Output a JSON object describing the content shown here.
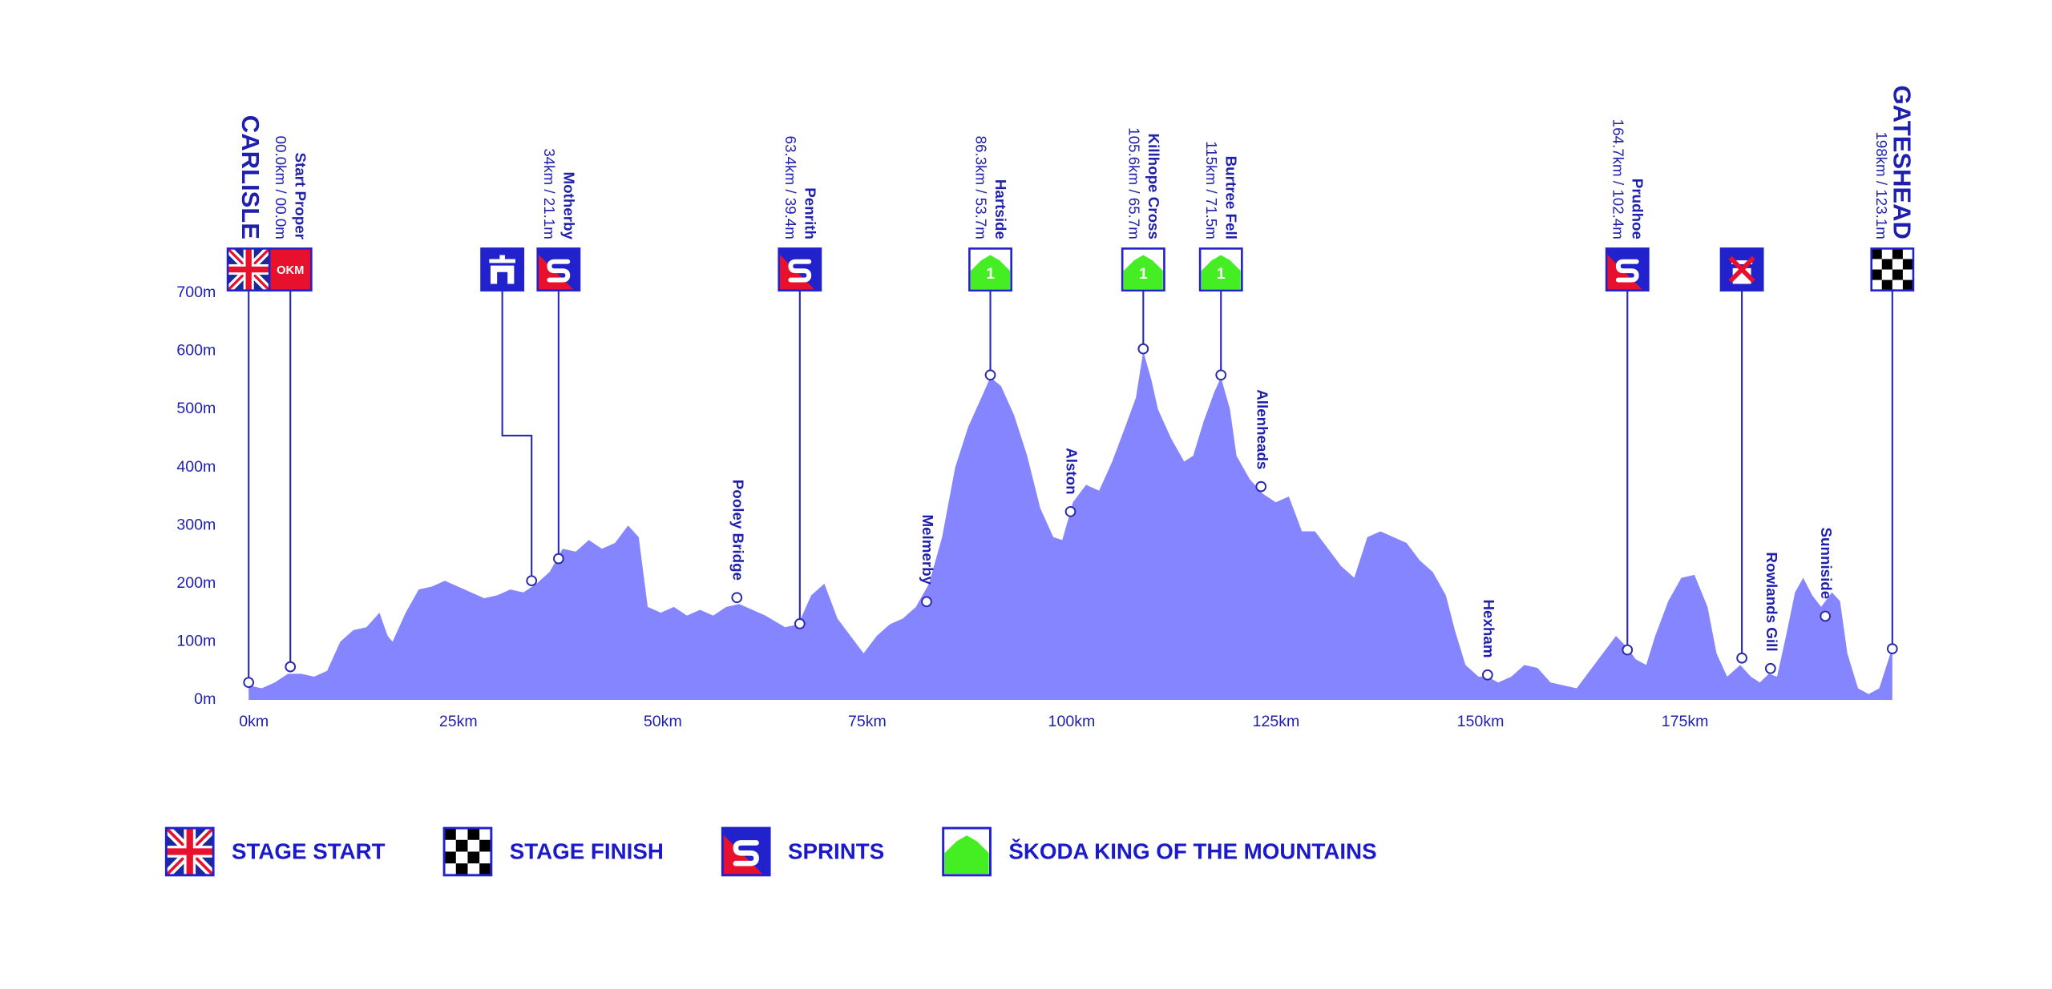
{
  "chart_data": {
    "type": "area",
    "color": "#8585ff",
    "xlim": [
      0,
      201
    ],
    "ylim": [
      0,
      700
    ],
    "xticks": [
      {
        "value": 0,
        "label": "0km"
      },
      {
        "value": 25,
        "label": "25km"
      },
      {
        "value": 50,
        "label": "50km"
      },
      {
        "value": 75,
        "label": "75km"
      },
      {
        "value": 100,
        "label": "100km"
      },
      {
        "value": 125,
        "label": "125km"
      },
      {
        "value": 150,
        "label": "150km"
      },
      {
        "value": 175,
        "label": "175km"
      }
    ],
    "yticks": [
      {
        "value": 0,
        "label": "0m"
      },
      {
        "value": 100,
        "label": "100m"
      },
      {
        "value": 200,
        "label": "200m"
      },
      {
        "value": 300,
        "label": "300m"
      },
      {
        "value": 400,
        "label": "400m"
      },
      {
        "value": 500,
        "label": "500m"
      },
      {
        "value": 600,
        "label": "600m"
      },
      {
        "value": 700,
        "label": "700m"
      }
    ],
    "x": [
      0,
      1.6,
      3.2,
      4.8,
      6.4,
      8,
      9.6,
      11.2,
      12.8,
      14.4,
      16,
      17,
      17.6,
      19.2,
      20.8,
      22.4,
      24,
      25.6,
      27.2,
      28.8,
      30.4,
      32,
      33.6,
      35.2,
      36.8,
      38.4,
      40,
      41.6,
      43.2,
      44.8,
      46.4,
      47.7,
      48.8,
      50.4,
      52,
      53.6,
      55.2,
      56.8,
      58.4,
      60,
      61.6,
      63.2,
      65.6,
      67.2,
      68.8,
      70.4,
      72,
      73.6,
      75.2,
      76.8,
      78.4,
      80,
      81.6,
      83.2,
      84.8,
      86.4,
      88,
      89.6,
      90.7,
      92,
      93.6,
      95.2,
      96.8,
      98.4,
      99.5,
      100.8,
      102.4,
      104,
      105.6,
      107.2,
      108.5,
      109.4,
      110.4,
      111.2,
      112.8,
      114.4,
      115.5,
      116.8,
      118.1,
      118.9,
      120,
      120.8,
      122.4,
      124,
      125.6,
      127.2,
      128.8,
      130.4,
      132,
      133.6,
      135.2,
      136.8,
      138.4,
      140,
      141.6,
      143.2,
      144.8,
      146.4,
      147.5,
      148.8,
      150.4,
      151.5,
      152.8,
      154.4,
      156,
      157.6,
      159.2,
      160.8,
      162.4,
      164,
      165.6,
      167.2,
      168.6,
      169.6,
      170.9,
      172,
      173.6,
      175.2,
      176.8,
      178.4,
      179.5,
      180.8,
      182.4,
      183.7,
      184.8,
      185.9,
      186.9,
      188,
      189.1,
      190.1,
      191.2,
      192.3,
      193.6,
      194.6,
      195.5,
      196.8,
      198.1,
      199.4,
      201
    ],
    "values": [
      25,
      20,
      30,
      45,
      45,
      40,
      50,
      100,
      120,
      125,
      150,
      110,
      100,
      150,
      190,
      195,
      205,
      195,
      185,
      175,
      180,
      190,
      185,
      200,
      220,
      260,
      255,
      275,
      260,
      270,
      300,
      280,
      160,
      150,
      160,
      145,
      155,
      145,
      160,
      165,
      155,
      145,
      125,
      130,
      180,
      200,
      140,
      110,
      80,
      110,
      130,
      140,
      160,
      200,
      280,
      400,
      470,
      520,
      555,
      540,
      490,
      420,
      330,
      280,
      275,
      340,
      370,
      360,
      410,
      470,
      520,
      600,
      550,
      500,
      450,
      410,
      420,
      480,
      530,
      555,
      500,
      420,
      380,
      355,
      340,
      350,
      290,
      290,
      260,
      230,
      210,
      280,
      290,
      280,
      270,
      240,
      220,
      180,
      120,
      60,
      40,
      40,
      30,
      40,
      60,
      55,
      30,
      25,
      20,
      50,
      80,
      110,
      90,
      70,
      60,
      110,
      170,
      210,
      215,
      160,
      80,
      40,
      60,
      40,
      30,
      45,
      40,
      110,
      185,
      210,
      180,
      160,
      185,
      170,
      80,
      20,
      10,
      20,
      90
    ],
    "points": [
      {
        "name": "CARLISLE",
        "x": 0,
        "y": 30,
        "marker": "start"
      },
      {
        "name": "Start Proper",
        "label": "00.0km / 00.0m",
        "x": 5.1,
        "y": 57,
        "marker": "badge",
        "badge": "OKM"
      },
      {
        "x": 34.6,
        "y": 205,
        "marker": "feed"
      },
      {
        "name": "Motherby",
        "label": "34km / 21.1m",
        "x": 37.9,
        "y": 243,
        "marker": "sprint"
      },
      {
        "name": "Pooley Bridge",
        "x": 59.7,
        "y": 176
      },
      {
        "name": "Penrith",
        "label": "63.4km / 39.4m",
        "x": 67.4,
        "y": 131,
        "marker": "sprint"
      },
      {
        "name": "Melmerby",
        "x": 82.9,
        "y": 169
      },
      {
        "name": "Hartside",
        "label": "86.3km / 53.7m",
        "x": 90.7,
        "y": 559,
        "marker": "kom",
        "category": 1
      },
      {
        "name": "Alston",
        "x": 100.5,
        "y": 324
      },
      {
        "name": "Killhope Cross",
        "label": "105.6km / 65.7m",
        "x": 109.4,
        "y": 604,
        "marker": "kom",
        "category": 1
      },
      {
        "name": "Burtree Fell",
        "label": "115km / 71.5m",
        "x": 118.9,
        "y": 559,
        "marker": "kom",
        "category": 1
      },
      {
        "name": "Allenheads",
        "x": 123.8,
        "y": 367
      },
      {
        "name": "Hexham",
        "x": 151.5,
        "y": 43
      },
      {
        "name": "Prudhoe",
        "label": "164.7km / 102.4m",
        "x": 168.6,
        "y": 86,
        "marker": "sprint"
      },
      {
        "x": 182.6,
        "y": 72,
        "marker": "neutral"
      },
      {
        "name": "Rowlands Gill",
        "x": 186.1,
        "y": 54
      },
      {
        "name": "Sunniside",
        "x": 192.8,
        "y": 144
      },
      {
        "name": "GATESHEAD",
        "label": "198km / 123.1m",
        "x": 201,
        "y": 88,
        "marker": "finish"
      }
    ],
    "legend": [
      {
        "label": "STAGE START",
        "marker": "start"
      },
      {
        "label": "STAGE FINISH",
        "marker": "finish"
      },
      {
        "label": "SPRINTS",
        "marker": "sprint"
      },
      {
        "label": "ŠKODA KING OF THE MOUNTAINS",
        "marker": "kom"
      }
    ]
  }
}
